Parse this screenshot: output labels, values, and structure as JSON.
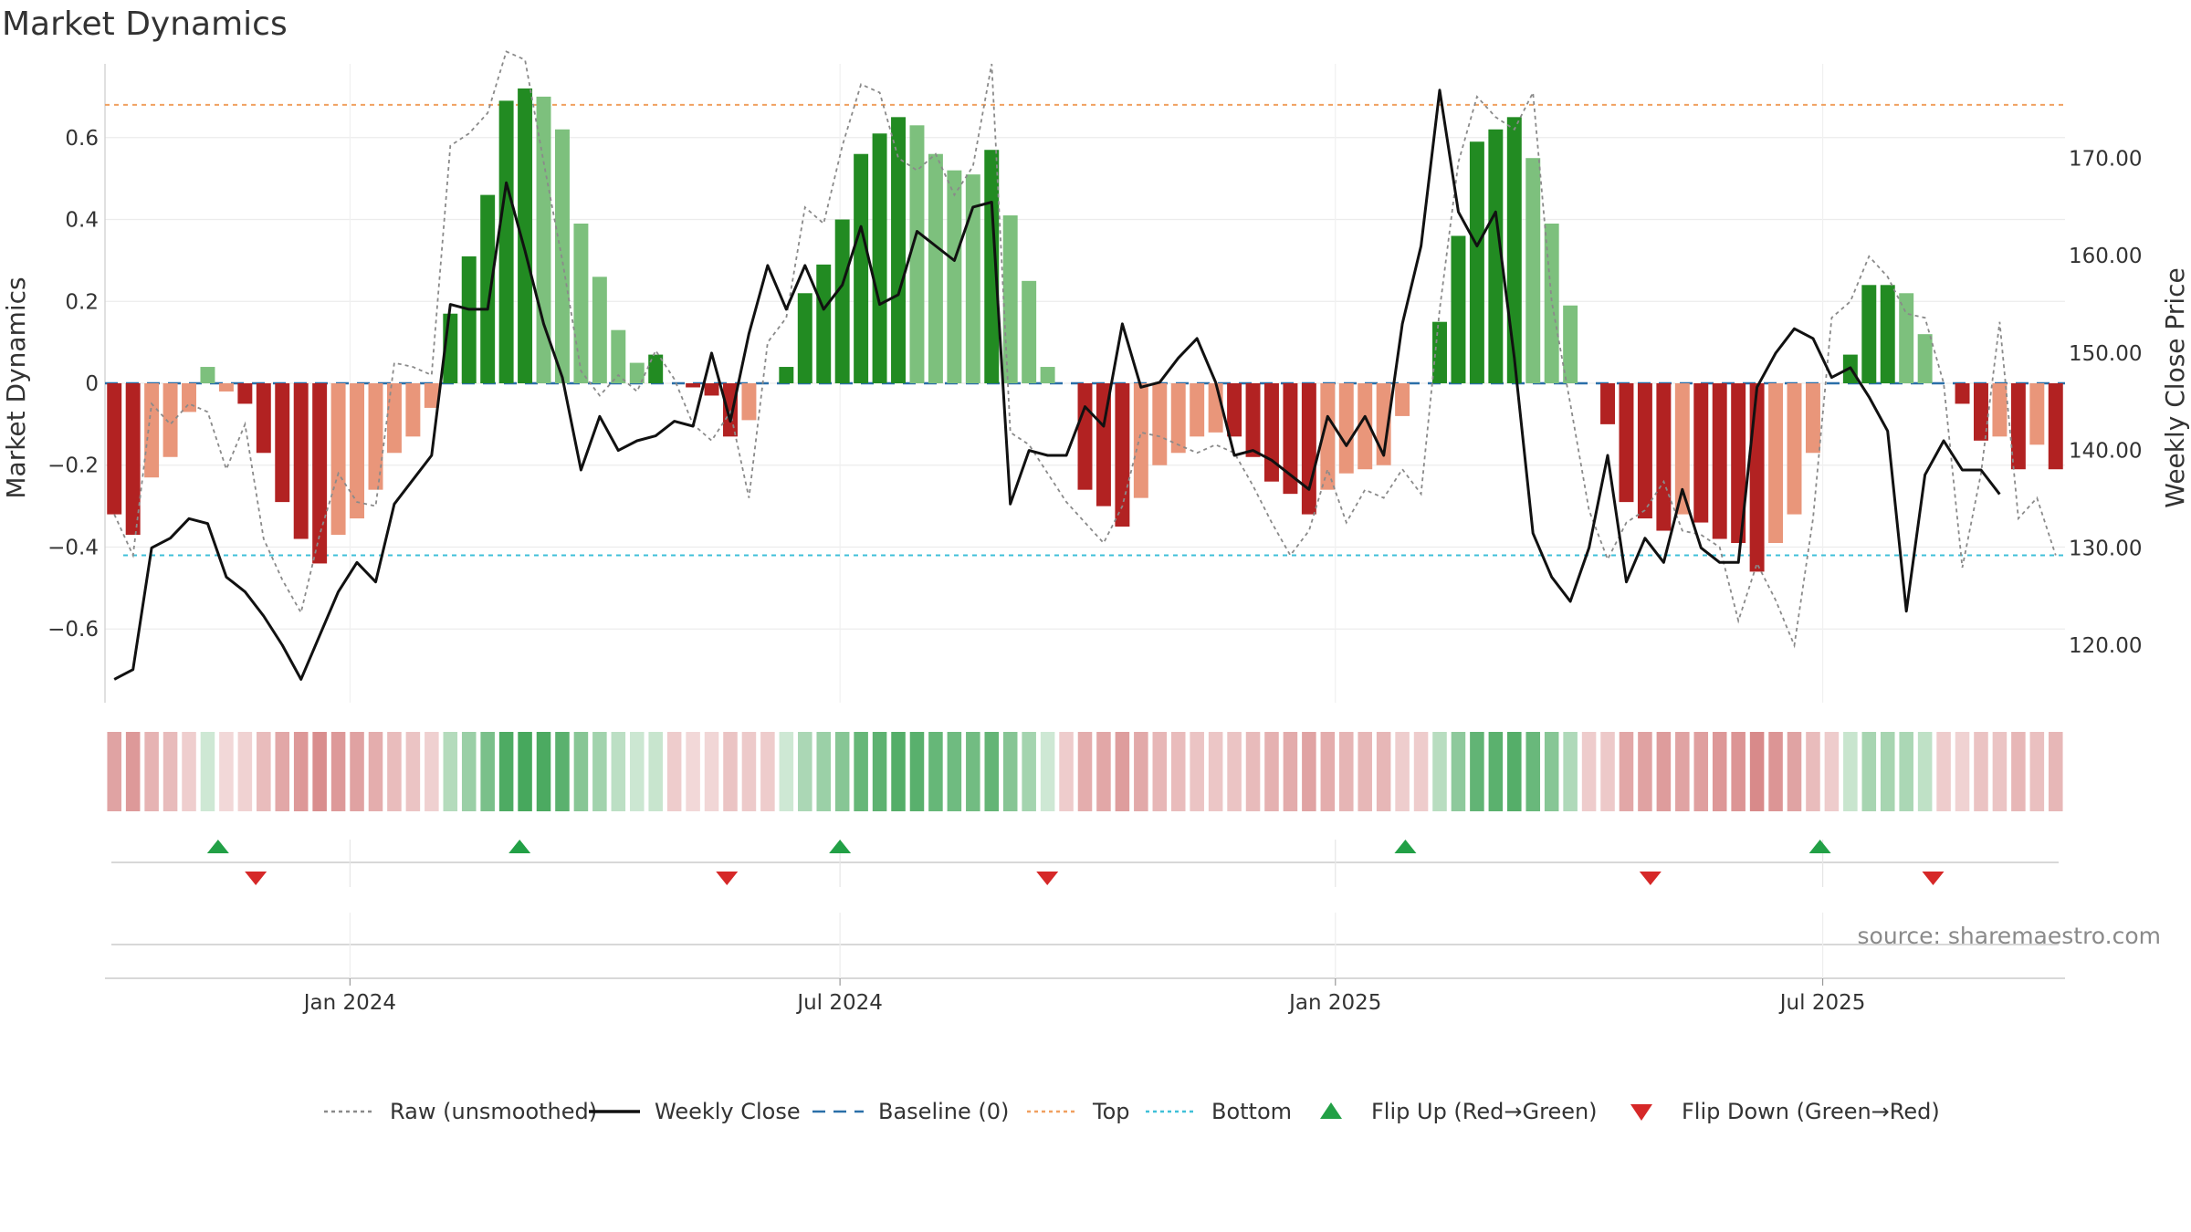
{
  "chart_data": {
    "type": "bar",
    "title": "Market Dynamics",
    "ylabel_left": "Market Dynamics",
    "ylabel_right": "Weekly Close Price",
    "ylim_left": [
      -0.78,
      0.78
    ],
    "ylim_right": [
      114.1,
      179.7
    ],
    "yticks_left": [
      "0.6",
      "0.4",
      "0.2",
      "0",
      "−0.2",
      "−0.4",
      "−0.6"
    ],
    "yticks_left_values": [
      0.6,
      0.4,
      0.2,
      0,
      -0.2,
      -0.4,
      -0.6
    ],
    "yticks_right": [
      "170.00",
      "160.00",
      "150.00",
      "140.00",
      "130.00",
      "120.00"
    ],
    "yticks_right_values": [
      170,
      160,
      150,
      140,
      130,
      120
    ],
    "x_start": "2023-10-02",
    "x_end": "2025-09-29",
    "xticks": [
      {
        "label": "Jan 2024",
        "date": "2024-01-01"
      },
      {
        "label": "Jul 2024",
        "date": "2024-07-01"
      },
      {
        "label": "Jan 2025",
        "date": "2025-01-01"
      },
      {
        "label": "Jul 2025",
        "date": "2025-07-01"
      }
    ],
    "top_line": 0.68,
    "bottom_line": -0.42,
    "baseline": 0,
    "series": [
      {
        "name": "Market Dynamics",
        "values": [
          -0.32,
          -0.37,
          -0.23,
          -0.18,
          -0.07,
          0.04,
          -0.02,
          -0.05,
          -0.17,
          -0.29,
          -0.38,
          -0.44,
          -0.37,
          -0.33,
          -0.26,
          -0.17,
          -0.13,
          -0.06,
          0.17,
          0.31,
          0.46,
          0.69,
          0.72,
          0.7,
          0.62,
          0.39,
          0.26,
          0.13,
          0.05,
          0.07,
          0.0,
          -0.01,
          -0.03,
          -0.13,
          -0.09,
          0.0,
          0.04,
          0.22,
          0.29,
          0.4,
          0.56,
          0.61,
          0.65,
          0.63,
          0.56,
          0.52,
          0.51,
          0.57,
          0.41,
          0.25,
          0.04,
          0.0,
          -0.26,
          -0.3,
          -0.35,
          -0.28,
          -0.2,
          -0.17,
          -0.13,
          -0.12,
          -0.13,
          -0.18,
          -0.24,
          -0.27,
          -0.32,
          -0.26,
          -0.22,
          -0.21,
          -0.2,
          -0.08,
          0.0,
          0.15,
          0.36,
          0.59,
          0.62,
          0.65,
          0.55,
          0.39,
          0.19,
          0.0,
          -0.1,
          -0.29,
          -0.33,
          -0.36,
          -0.32,
          -0.34,
          -0.38,
          -0.39,
          -0.46,
          -0.39,
          -0.32,
          -0.17,
          0.0,
          0.07,
          0.24,
          0.24,
          0.22,
          0.12,
          0.0,
          -0.05,
          -0.14,
          -0.13,
          -0.21,
          -0.15,
          -0.21
        ]
      },
      {
        "name": "Raw (unsmoothed)",
        "values": [
          -0.32,
          -0.42,
          -0.05,
          -0.1,
          -0.05,
          -0.07,
          -0.21,
          -0.1,
          -0.38,
          -0.48,
          -0.56,
          -0.37,
          -0.22,
          -0.29,
          -0.3,
          0.05,
          0.04,
          0.02,
          0.58,
          0.61,
          0.66,
          0.81,
          0.79,
          0.54,
          0.3,
          0.03,
          -0.03,
          0.02,
          -0.02,
          0.08,
          0.01,
          -0.1,
          -0.14,
          -0.07,
          -0.28,
          0.1,
          0.16,
          0.43,
          0.39,
          0.58,
          0.73,
          0.71,
          0.55,
          0.52,
          0.56,
          0.46,
          0.53,
          0.78,
          -0.12,
          -0.15,
          -0.22,
          -0.29,
          -0.34,
          -0.39,
          -0.3,
          -0.12,
          -0.13,
          -0.15,
          -0.17,
          -0.15,
          -0.17,
          -0.25,
          -0.34,
          -0.42,
          -0.36,
          -0.21,
          -0.34,
          -0.26,
          -0.28,
          -0.21,
          -0.27,
          0.18,
          0.54,
          0.7,
          0.65,
          0.62,
          0.71,
          0.2,
          -0.05,
          -0.31,
          -0.43,
          -0.34,
          -0.31,
          -0.24,
          -0.36,
          -0.37,
          -0.4,
          -0.58,
          -0.44,
          -0.53,
          -0.64,
          -0.33,
          0.16,
          0.2,
          0.31,
          0.26,
          0.17,
          0.16,
          0.0,
          -0.45,
          -0.22,
          0.15,
          -0.33,
          -0.28,
          -0.42
        ]
      },
      {
        "name": "Weekly Close",
        "values": [
          116.5,
          117.5,
          130,
          131,
          133,
          132.5,
          127,
          125.5,
          123,
          120,
          116.5,
          121,
          125.5,
          128.5,
          126.5,
          134.5,
          137,
          139.5,
          155,
          154.5,
          154.5,
          167.5,
          160.5,
          153,
          147.5,
          138,
          143.5,
          140,
          141,
          141.5,
          143,
          142.5,
          150,
          143,
          152,
          159,
          154.5,
          159,
          154.5,
          157,
          163,
          155,
          156,
          162.5,
          161,
          159.5,
          165,
          165.5,
          134.5,
          140,
          139.5,
          139.5,
          144.5,
          142.5,
          153,
          146.5,
          147,
          149.5,
          151.5,
          147,
          139.5,
          140,
          139,
          137.5,
          136,
          143.5,
          140.5,
          143.5,
          139.5,
          153,
          161,
          177,
          164.5,
          161,
          164.5,
          149.5,
          131.5,
          127,
          124.5,
          130,
          139.5,
          126.5,
          131,
          128.5,
          136,
          130,
          128.5,
          128.5,
          146.5,
          150,
          152.5,
          151.5,
          147.5,
          148.5,
          145.5,
          142,
          123.5,
          137.5,
          141,
          138,
          138,
          135.5
        ]
      },
      {
        "name": "Flip Up (Red→Green)",
        "dates": [
          "2023-11-13",
          "2024-03-04",
          "2024-07-01",
          "2025-01-27",
          "2025-06-30"
        ]
      },
      {
        "name": "Flip Down (Green→Red)",
        "dates": [
          "2023-11-27",
          "2024-05-20",
          "2024-09-16",
          "2025-04-28",
          "2025-08-11"
        ]
      }
    ],
    "legend": [
      {
        "label": "Raw (unsmoothed)",
        "kind": "dotted",
        "color": "#8a8a8a"
      },
      {
        "label": "Weekly Close",
        "kind": "solid",
        "color": "#111111"
      },
      {
        "label": "Baseline (0)",
        "kind": "dashed",
        "color": "#2a6fa8"
      },
      {
        "label": "Top",
        "kind": "dotted",
        "color": "#f0a060"
      },
      {
        "label": "Bottom",
        "kind": "dotted",
        "color": "#40c0d8"
      },
      {
        "label": "Flip Up (Red→Green)",
        "kind": "tri-up",
        "color": "#22a046"
      },
      {
        "label": "Flip Down (Green→Red)",
        "kind": "tri-down",
        "color": "#d62828"
      }
    ],
    "legend_placement": "bottom",
    "grid": true
  },
  "source_text": "source: sharemaestro.com",
  "colors": {
    "pos_strong": "#228b22",
    "pos_weak": "#7dc07d",
    "neg_strong": "#b22222",
    "neg_weak": "#e9967a",
    "top_line": "#f0a060",
    "bottom_line": "#40c0d8",
    "baseline": "#2a6fa8"
  }
}
